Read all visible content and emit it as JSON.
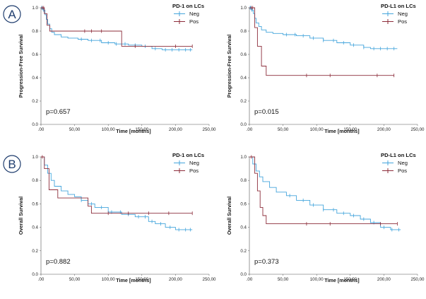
{
  "panel_labels": [
    "A",
    "B"
  ],
  "colors": {
    "neg": "#44a5dc",
    "pos": "#8c2c3a",
    "axis": "#555555",
    "panel_letter": "#1f3d6e"
  },
  "chart_data": [
    {
      "type": "line",
      "title": "PD-1 on LCs",
      "xlabel": "Time [months]",
      "ylabel": "Progression-Free Survival",
      "xlim": [
        0,
        250
      ],
      "ylim": [
        0,
        1
      ],
      "xticks": [
        ".00",
        "50,00",
        "100,00",
        "150,00",
        "200,00",
        "250,00"
      ],
      "yticks": [
        "0.0",
        "0.2",
        "0.4",
        "0.6",
        "0.8",
        "1.0"
      ],
      "p_value": "p=0.657",
      "series": [
        {
          "name": "Neg",
          "color": "#44a5dc",
          "x": [
            0,
            3,
            6,
            8,
            10,
            13,
            16,
            20,
            30,
            40,
            55,
            70,
            90,
            110,
            130,
            150,
            165,
            180,
            225
          ],
          "y": [
            1.0,
            0.98,
            0.94,
            0.9,
            0.86,
            0.82,
            0.79,
            0.77,
            0.75,
            0.74,
            0.73,
            0.72,
            0.7,
            0.69,
            0.68,
            0.67,
            0.65,
            0.64,
            0.64
          ],
          "censor": [
            1,
            2,
            4,
            60,
            75,
            88,
            100,
            112,
            125,
            140,
            155,
            170,
            185,
            195,
            205,
            215,
            222
          ]
        },
        {
          "name": "Pos",
          "color": "#8c2c3a",
          "x": [
            0,
            5,
            9,
            13,
            120,
            225
          ],
          "y": [
            1.0,
            0.95,
            0.85,
            0.8,
            0.67,
            0.67
          ],
          "censor": [
            2,
            4,
            65,
            75,
            90,
            140,
            200,
            225
          ]
        }
      ]
    },
    {
      "type": "line",
      "title": "PD-L1 on LCs",
      "xlabel": "Time [months]",
      "ylabel": "Progression-Free Survival",
      "xlim": [
        0,
        250
      ],
      "ylim": [
        0,
        1
      ],
      "xticks": [
        ".00",
        "50,00",
        "100,00",
        "150,00",
        "200,00",
        "250,00"
      ],
      "yticks": [
        "0.0",
        "0.2",
        "0.4",
        "0.6",
        "0.8",
        "1.0"
      ],
      "p_value": "p=0.015",
      "series": [
        {
          "name": "Neg",
          "color": "#44a5dc",
          "x": [
            0,
            3,
            6,
            8,
            10,
            14,
            18,
            25,
            35,
            50,
            70,
            90,
            110,
            130,
            150,
            170,
            180,
            220
          ],
          "y": [
            1.0,
            0.98,
            0.95,
            0.91,
            0.87,
            0.84,
            0.81,
            0.79,
            0.78,
            0.77,
            0.76,
            0.74,
            0.72,
            0.7,
            0.68,
            0.66,
            0.65,
            0.65
          ],
          "censor": [
            1,
            2,
            4,
            55,
            68,
            80,
            95,
            110,
            125,
            140,
            155,
            170,
            185,
            195,
            205,
            215
          ]
        },
        {
          "name": "Pos",
          "color": "#8c2c3a",
          "x": [
            0,
            8,
            12,
            18,
            25,
            215
          ],
          "y": [
            1.0,
            0.83,
            0.67,
            0.5,
            0.42,
            0.42
          ],
          "censor": [
            3,
            5,
            85,
            120,
            190,
            215
          ]
        }
      ]
    },
    {
      "type": "line",
      "title": "PD-1 on LCs",
      "xlabel": "Time [months]",
      "ylabel": "Overall Survival",
      "xlim": [
        0,
        250
      ],
      "ylim": [
        0,
        1
      ],
      "xticks": [
        ".00",
        "50,00",
        "100,00",
        "150,00",
        "200,00",
        "250,00"
      ],
      "yticks": [
        "0.0",
        "0.2",
        "0.4",
        "0.6",
        "0.8",
        "1.0"
      ],
      "p_value": "p=0.882",
      "series": [
        {
          "name": "Neg",
          "color": "#44a5dc",
          "x": [
            0,
            5,
            10,
            15,
            20,
            30,
            40,
            50,
            60,
            70,
            80,
            100,
            120,
            140,
            160,
            170,
            185,
            200,
            210,
            225
          ],
          "y": [
            1.0,
            0.93,
            0.86,
            0.8,
            0.75,
            0.71,
            0.68,
            0.66,
            0.63,
            0.6,
            0.57,
            0.53,
            0.51,
            0.49,
            0.45,
            0.43,
            0.4,
            0.38,
            0.38,
            0.38
          ],
          "censor": [
            60,
            75,
            90,
            105,
            118,
            130,
            145,
            155,
            165,
            178,
            192,
            205,
            215,
            222
          ]
        },
        {
          "name": "Pos",
          "color": "#8c2c3a",
          "x": [
            0,
            5,
            12,
            25,
            70,
            75,
            225
          ],
          "y": [
            1.0,
            0.9,
            0.72,
            0.65,
            0.58,
            0.52,
            0.52
          ],
          "censor": [
            2,
            100,
            130,
            160,
            190,
            225
          ]
        }
      ]
    },
    {
      "type": "line",
      "title": "PD-L1 on LCs",
      "xlabel": "Time [months]",
      "ylabel": "Overall Survival",
      "xlim": [
        0,
        250
      ],
      "ylim": [
        0,
        1
      ],
      "xticks": [
        ".00",
        "50,00",
        "100,00",
        "150,00",
        "200,00",
        "250,00"
      ],
      "yticks": [
        "0.0",
        "0.2",
        "0.4",
        "0.6",
        "0.8",
        "1.0"
      ],
      "p_value": "p=0.373",
      "series": [
        {
          "name": "Neg",
          "color": "#44a5dc",
          "x": [
            0,
            5,
            10,
            15,
            20,
            30,
            40,
            55,
            70,
            90,
            110,
            130,
            150,
            165,
            180,
            195,
            210,
            225
          ],
          "y": [
            1.0,
            0.94,
            0.88,
            0.83,
            0.79,
            0.74,
            0.7,
            0.67,
            0.63,
            0.59,
            0.55,
            0.52,
            0.5,
            0.47,
            0.44,
            0.4,
            0.38,
            0.38
          ],
          "censor": [
            60,
            80,
            95,
            110,
            125,
            140,
            155,
            170,
            185,
            200,
            212,
            222
          ]
        },
        {
          "name": "Pos",
          "color": "#8c2c3a",
          "x": [
            0,
            8,
            12,
            16,
            20,
            25,
            195,
            220
          ],
          "y": [
            1.0,
            0.86,
            0.71,
            0.57,
            0.5,
            0.43,
            0.43,
            0.43
          ],
          "censor": [
            3,
            85,
            120,
            195,
            220
          ]
        }
      ]
    }
  ]
}
